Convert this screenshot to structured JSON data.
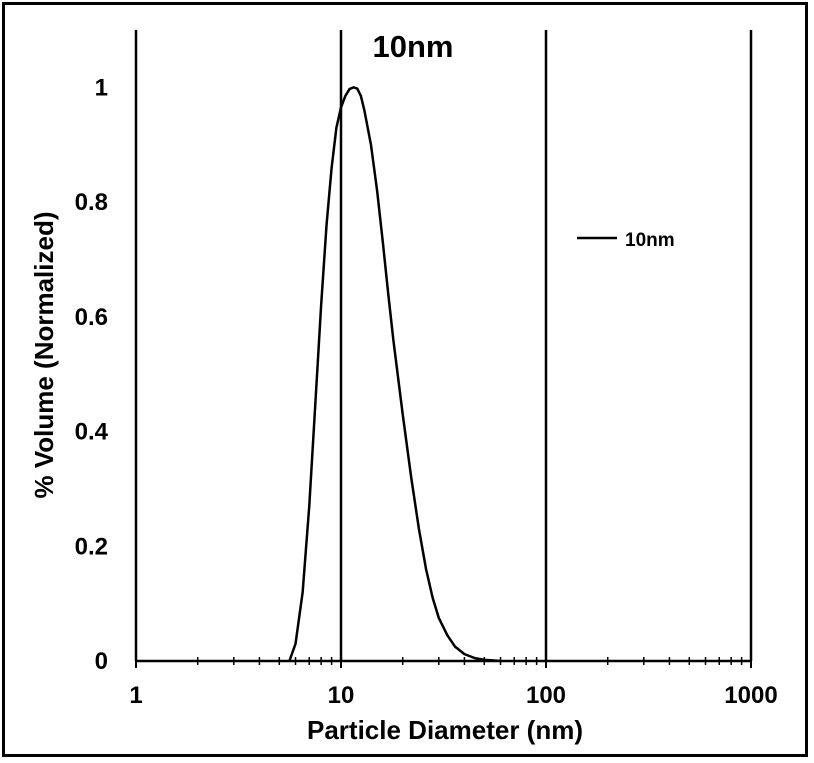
{
  "chart_data": {
    "type": "line",
    "title": "10nm",
    "xlabel": "Particle Diameter (nm)",
    "ylabel": "% Volume (Normalized)",
    "x_scale": "log",
    "xlim": [
      1,
      1000
    ],
    "ylim": [
      0,
      1.1
    ],
    "x_ticks": [
      "1",
      "10",
      "100",
      "1000"
    ],
    "y_ticks": [
      "0",
      "0.2",
      "0.4",
      "0.6",
      "0.8",
      "1"
    ],
    "grid": "vertical lines at decades",
    "legend": "right",
    "series": [
      {
        "name": "10nm",
        "color": "#000000",
        "x": [
          5.6,
          6.0,
          6.5,
          7.0,
          7.5,
          8.0,
          8.5,
          9.0,
          9.5,
          10,
          10.5,
          11,
          11.5,
          12,
          12.5,
          13,
          14,
          15,
          16,
          17,
          18,
          20,
          22,
          24,
          26,
          28,
          30,
          33,
          36,
          40,
          45,
          50,
          55,
          60
        ],
        "y": [
          0.0,
          0.03,
          0.12,
          0.27,
          0.45,
          0.62,
          0.76,
          0.86,
          0.93,
          0.965,
          0.985,
          0.997,
          1.0,
          0.998,
          0.985,
          0.96,
          0.9,
          0.82,
          0.73,
          0.64,
          0.56,
          0.43,
          0.32,
          0.23,
          0.16,
          0.11,
          0.075,
          0.045,
          0.025,
          0.012,
          0.005,
          0.002,
          0.001,
          0.0
        ]
      }
    ]
  }
}
